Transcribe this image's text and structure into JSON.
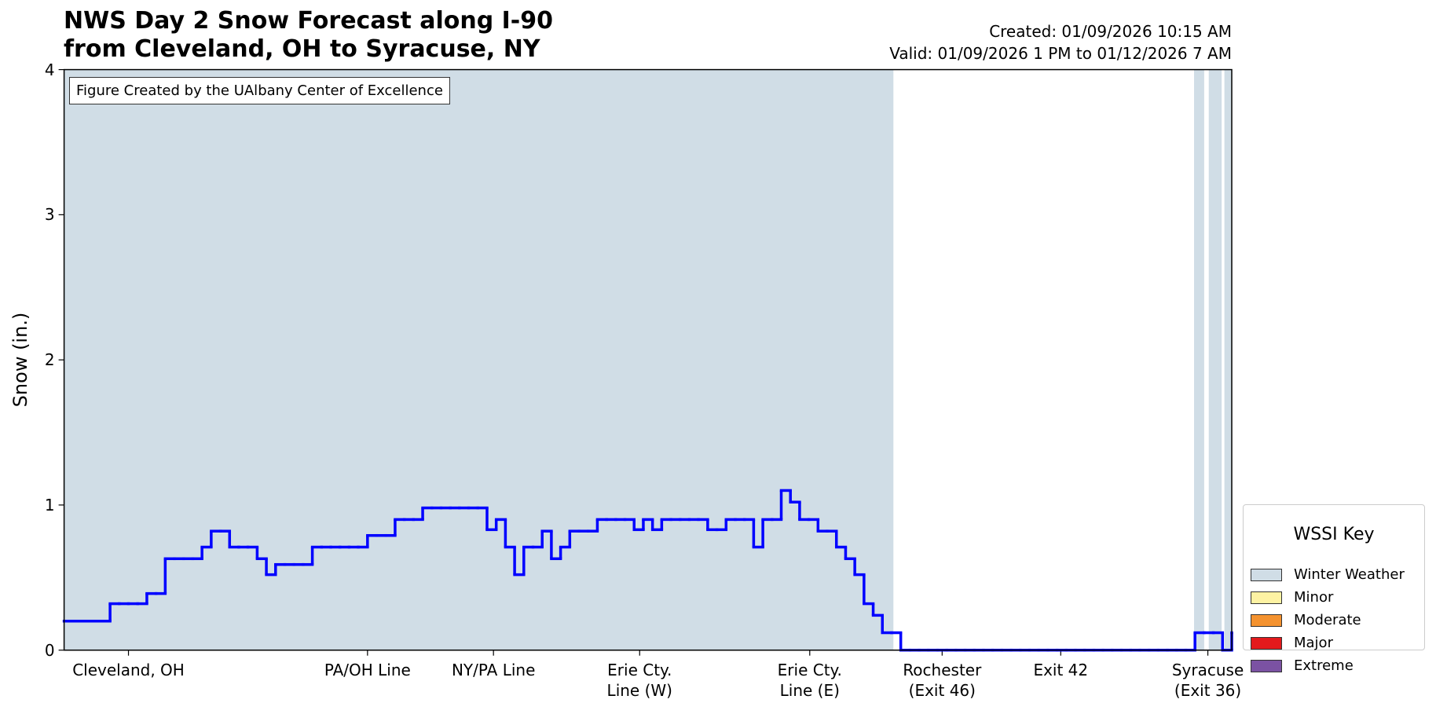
{
  "chart_data": {
    "type": "line",
    "title": "NWS Day 2 Snow Forecast along I-90\nfrom Cleveland, OH to Syracuse, NY",
    "created": "Created: 01/09/2026 10:15 AM",
    "valid": "Valid: 01/09/2026 1 PM to 01/12/2026 7 AM",
    "annotation": "Figure Created by the UAlbany Center of Excellence",
    "ylabel": "Snow (in.)",
    "ylim": [
      0,
      4
    ],
    "yticks": [
      0,
      1,
      2,
      3,
      4
    ],
    "xlim": [
      0,
      127
    ],
    "xticks": [
      {
        "value": 7,
        "label": "Cleveland, OH"
      },
      {
        "value": 33,
        "label": "PA/OH Line"
      },
      {
        "value": 46.7,
        "label": "NY/PA Line"
      },
      {
        "value": 62.6,
        "label": "Erie Cty.\nLine (W)"
      },
      {
        "value": 81.1,
        "label": "Erie Cty.\nLine (E)"
      },
      {
        "value": 95.5,
        "label": "Rochester\n(Exit 46)"
      },
      {
        "value": 108.4,
        "label": "Exit 42"
      },
      {
        "value": 124.4,
        "label": "Syracuse\n(Exit 36)"
      }
    ],
    "series": [
      {
        "name": "Snow",
        "color": "#0000ff",
        "values": [
          0.2,
          0.2,
          0.2,
          0.2,
          0.2,
          0.32,
          0.32,
          0.32,
          0.32,
          0.39,
          0.39,
          0.63,
          0.63,
          0.63,
          0.63,
          0.71,
          0.82,
          0.82,
          0.71,
          0.71,
          0.71,
          0.63,
          0.52,
          0.59,
          0.59,
          0.59,
          0.59,
          0.71,
          0.71,
          0.71,
          0.71,
          0.71,
          0.71,
          0.79,
          0.79,
          0.79,
          0.9,
          0.9,
          0.9,
          0.98,
          0.98,
          0.98,
          0.98,
          0.98,
          0.98,
          0.98,
          0.83,
          0.9,
          0.71,
          0.52,
          0.71,
          0.71,
          0.82,
          0.63,
          0.71,
          0.82,
          0.82,
          0.82,
          0.9,
          0.9,
          0.9,
          0.9,
          0.83,
          0.9,
          0.83,
          0.9,
          0.9,
          0.9,
          0.9,
          0.9,
          0.83,
          0.83,
          0.9,
          0.9,
          0.9,
          0.71,
          0.9,
          0.9,
          1.1,
          1.02,
          0.9,
          0.9,
          0.82,
          0.82,
          0.71,
          0.63,
          0.52,
          0.32,
          0.24,
          0.12,
          0.12,
          0,
          0,
          0,
          0,
          0,
          0,
          0,
          0,
          0,
          0,
          0,
          0,
          0,
          0,
          0,
          0,
          0,
          0,
          0,
          0,
          0,
          0,
          0,
          0,
          0,
          0,
          0,
          0,
          0,
          0,
          0,
          0,
          0.12,
          0.12,
          0.12,
          0,
          0.12
        ]
      }
    ],
    "wssi": {
      "title": "WSSI Key",
      "levels": [
        {
          "name": "Winter Weather",
          "color": "#d0dde6"
        },
        {
          "name": "Minor",
          "color": "#fdf2a3"
        },
        {
          "name": "Moderate",
          "color": "#f4922f"
        },
        {
          "name": "Major",
          "color": "#e31a1c"
        },
        {
          "name": "Extreme",
          "color": "#7b52a3"
        }
      ],
      "regions": [
        {
          "start": 0,
          "end": 90.2,
          "level": 0
        },
        {
          "start": 122.9,
          "end": 124,
          "level": 0
        },
        {
          "start": 124.5,
          "end": 125.9,
          "level": 0
        },
        {
          "start": 126.2,
          "end": 127,
          "level": 0
        }
      ]
    }
  }
}
